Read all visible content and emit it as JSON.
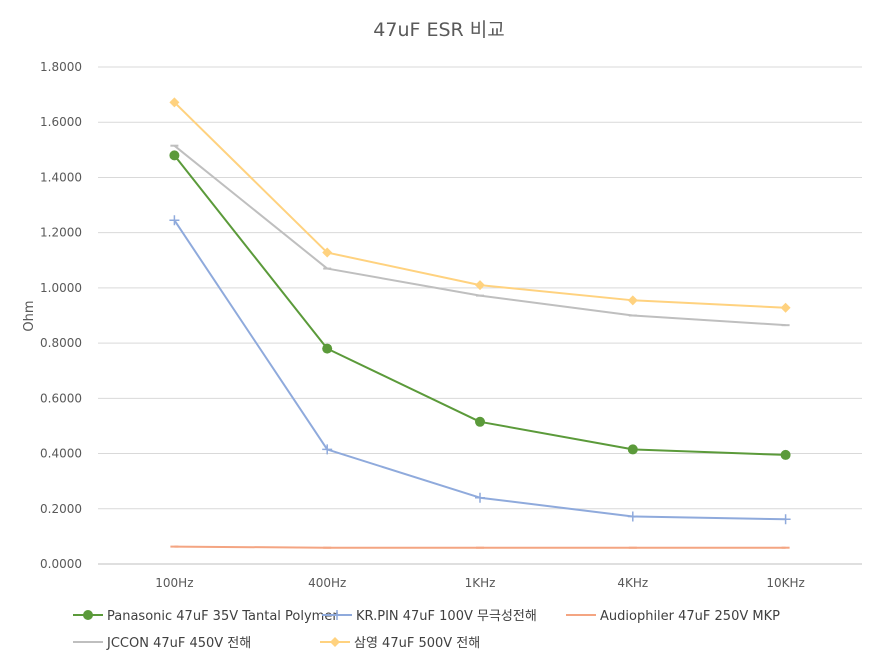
{
  "chart_data": {
    "type": "line",
    "title": "47uF ESR 비교",
    "xlabel": "",
    "ylabel": "Ohm",
    "ylim": [
      0,
      1.8
    ],
    "ytick_step": 0.2,
    "ytick_format_decimals": 4,
    "grid": true,
    "legend_position": "bottom",
    "categories": [
      "100Hz",
      "400Hz",
      "1KHz",
      "4KHz",
      "10KHz"
    ],
    "series": [
      {
        "name": "Panasonic 47uF 35V Tantal Polymer",
        "color": "#5b9a3a",
        "marker": "circle",
        "values": [
          1.48,
          0.78,
          0.515,
          0.415,
          0.395
        ]
      },
      {
        "name": "KR.PIN 47uF 100V 무극성전해",
        "color": "#8faadc",
        "marker": "plus",
        "values": [
          1.245,
          0.415,
          0.24,
          0.172,
          0.162
        ]
      },
      {
        "name": "Audiophiler 47uF 250V MKP",
        "color": "#f4a582",
        "marker": "dash",
        "values": [
          0.063,
          0.059,
          0.059,
          0.059,
          0.059
        ]
      },
      {
        "name": "JCCON 47uF 450V 전해",
        "color": "#bfbfbf",
        "marker": "dash",
        "values": [
          1.515,
          1.07,
          0.972,
          0.9,
          0.865
        ]
      },
      {
        "name": "삼영 47uF 500V 전해",
        "color": "#ffd27f",
        "marker": "diamond",
        "values": [
          1.672,
          1.128,
          1.01,
          0.955,
          0.928
        ]
      }
    ]
  }
}
